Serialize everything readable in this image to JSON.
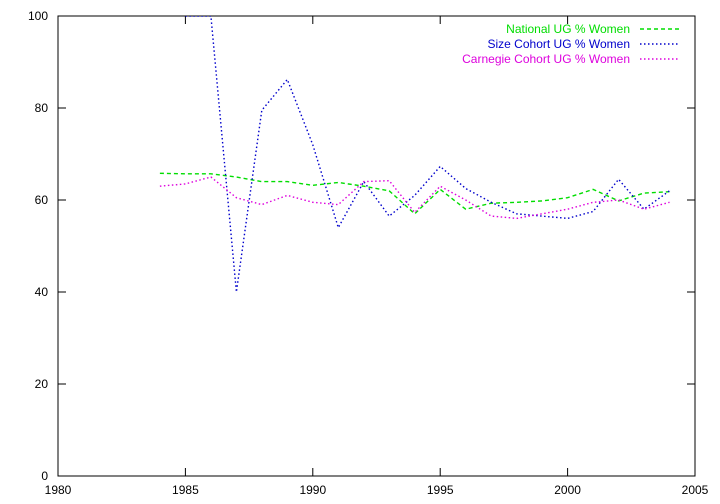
{
  "chart_data": {
    "type": "line",
    "xlim": [
      1980,
      2005
    ],
    "ylim": [
      0,
      100
    ],
    "xticks": [
      1980,
      1985,
      1990,
      1995,
      2000,
      2005
    ],
    "yticks": [
      0,
      20,
      40,
      60,
      80,
      100
    ],
    "grid": false,
    "legend_position": "top-right",
    "series": [
      {
        "name": "National UG % Women",
        "color": "#00dd00",
        "dash": "dashed",
        "x": [
          1984,
          1985,
          1986,
          1987,
          1988,
          1989,
          1990,
          1991,
          1992,
          1993,
          1994,
          1995,
          1996,
          1997,
          1998,
          1999,
          2000,
          2001,
          2002,
          2003,
          2004
        ],
        "y": [
          65.8,
          65.7,
          65.7,
          65.0,
          64.0,
          64.0,
          63.2,
          63.8,
          63.0,
          62.0,
          57.0,
          62.3,
          58.0,
          59.3,
          59.5,
          59.8,
          60.5,
          62.3,
          59.8,
          61.5,
          61.8
        ]
      },
      {
        "name": "Size Cohort UG % Women",
        "color": "#0000cc",
        "dash": "dotted",
        "x": [
          1985,
          1986,
          1987,
          1988,
          1989,
          1990,
          1991,
          1992,
          1993,
          1994,
          1995,
          1996,
          1997,
          1998,
          1999,
          2000,
          2001,
          2002,
          2003,
          2004
        ],
        "y": [
          100,
          100,
          40,
          79.5,
          86.2,
          72.0,
          54.0,
          64.0,
          56.5,
          61.0,
          67.3,
          62.5,
          59.5,
          57.0,
          56.5,
          56.0,
          57.5,
          64.5,
          58.0,
          62.0
        ]
      },
      {
        "name": "Carnegie Cohort UG % Women",
        "color": "#dd00dd",
        "dash": "dotted",
        "x": [
          1984,
          1985,
          1986,
          1987,
          1988,
          1989,
          1990,
          1991,
          1992,
          1993,
          1994,
          1995,
          1996,
          1997,
          1998,
          1999,
          2000,
          2001,
          2002,
          2003,
          2004
        ],
        "y": [
          63.0,
          63.5,
          65.0,
          60.5,
          59.0,
          61.0,
          59.5,
          59.0,
          64.0,
          64.2,
          57.3,
          63.0,
          60.0,
          56.5,
          56.0,
          57.0,
          58.0,
          59.5,
          60.0,
          58.0,
          59.5
        ]
      }
    ]
  }
}
